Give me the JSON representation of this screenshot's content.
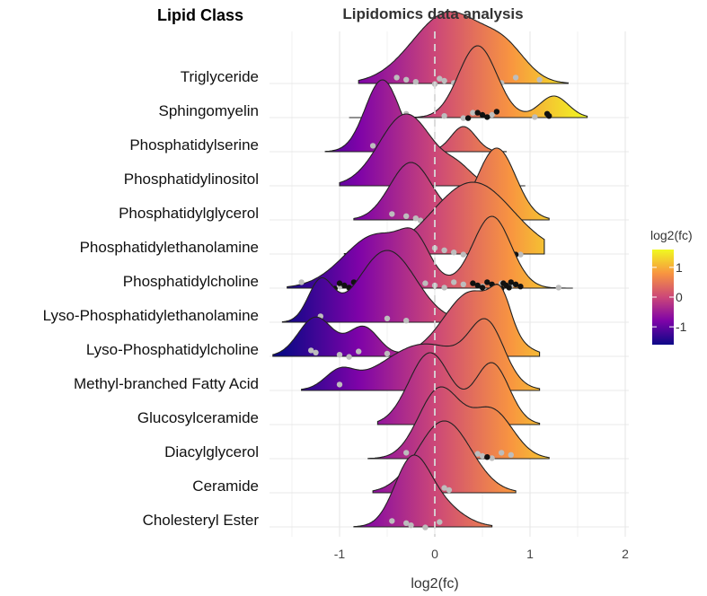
{
  "chart_data": {
    "type": "ridgeline",
    "title": "Lipidomics data analysis",
    "ylabel": "Lipid Class",
    "xlabel": "log2(fc)",
    "xlim": [
      -1.7,
      2.1
    ],
    "x_ticks": [
      -1,
      0,
      1,
      2
    ],
    "grid": true,
    "reference_line": {
      "x": 0,
      "style": "dashed"
    },
    "colorbar": {
      "title": "log2(fc)",
      "range": [
        -1.6,
        1.6
      ],
      "ticks": [
        1,
        0,
        -1
      ],
      "colors": [
        "#0d0887",
        "#7e03a8",
        "#cc4778",
        "#f89540",
        "#f0f921"
      ],
      "placement": "right"
    },
    "categories": [
      "Triglyceride",
      "Sphingomyelin",
      "Phosphatidylserine",
      "Phosphatidylinositol",
      "Phosphatidylglycerol",
      "Phosphatidylethanolamine",
      "Phosphatidylcholine",
      "Lyso-Phosphatidylethanolamine",
      "Lyso-Phosphatidylcholine",
      "Methyl-branched Fatty Acid",
      "Glucosylceramide",
      "Diacylglycerol",
      "Ceramide",
      "Cholesteryl Ester"
    ],
    "series": [
      {
        "name": "Triglyceride",
        "range": [
          -0.8,
          1.4
        ],
        "peaks": [
          {
            "mu": 0.15,
            "sd": 0.38,
            "h": 1.0
          },
          {
            "mu": 0.75,
            "sd": 0.22,
            "h": 0.35
          }
        ],
        "points_grey": [
          -0.4,
          -0.3,
          -0.2,
          0.0,
          0.05,
          0.1,
          0.2,
          0.3,
          0.35,
          0.45,
          0.5,
          0.55,
          0.6,
          0.7,
          0.85,
          1.1
        ],
        "points_black": []
      },
      {
        "name": "Sphingomyelin",
        "range": [
          -0.9,
          1.6
        ],
        "peaks": [
          {
            "mu": 0.45,
            "sd": 0.2,
            "h": 1.0
          },
          {
            "mu": 1.25,
            "sd": 0.15,
            "h": 0.3
          }
        ],
        "points_grey": [
          -0.6,
          -0.3,
          0.1,
          0.3,
          0.4,
          0.6,
          1.05
        ],
        "points_black": [
          -0.55,
          0.35,
          0.45,
          0.5,
          0.55,
          0.65,
          1.18,
          1.2
        ]
      },
      {
        "name": "Phosphatidylserine",
        "range": [
          -1.15,
          0.75
        ],
        "peaks": [
          {
            "mu": -0.55,
            "sd": 0.18,
            "h": 1.0
          },
          {
            "mu": 0.3,
            "sd": 0.13,
            "h": 0.35
          }
        ],
        "points_grey": [
          -0.65
        ],
        "points_black": []
      },
      {
        "name": "Phosphatidylinositol",
        "range": [
          -1.0,
          0.95
        ],
        "peaks": [
          {
            "mu": -0.3,
            "sd": 0.28,
            "h": 1.0
          },
          {
            "mu": 0.25,
            "sd": 0.15,
            "h": 0.2
          }
        ],
        "points_grey": [],
        "points_black": []
      },
      {
        "name": "Phosphatidylglycerol",
        "range": [
          -0.85,
          1.2
        ],
        "peaks": [
          {
            "mu": -0.25,
            "sd": 0.22,
            "h": 0.8
          },
          {
            "mu": 0.65,
            "sd": 0.2,
            "h": 1.0
          }
        ],
        "points_grey": [
          -0.45,
          -0.3,
          -0.2,
          -0.15
        ],
        "points_black": [
          0.55,
          0.75
        ]
      },
      {
        "name": "Phosphatidylethanolamine",
        "range": [
          -0.95,
          1.15
        ],
        "peaks": [
          {
            "mu": 0.4,
            "sd": 0.42,
            "h": 1.0
          }
        ],
        "points_grey": [
          -0.8,
          -0.7,
          -0.5,
          -0.4,
          -0.3,
          -0.2,
          -0.1,
          0.0,
          0.1,
          0.2,
          0.3,
          0.4,
          0.5,
          0.55,
          0.6,
          0.7,
          0.8,
          0.9
        ],
        "points_black": [
          -0.65,
          -0.55,
          0.4,
          0.45,
          0.5,
          0.55,
          0.6,
          0.62,
          0.65,
          0.68,
          0.7,
          0.72,
          0.75,
          0.78,
          0.8,
          0.85
        ]
      },
      {
        "name": "Phosphatidylcholine",
        "range": [
          -1.55,
          1.45
        ],
        "peaks": [
          {
            "mu": -0.6,
            "sd": 0.35,
            "h": 0.75
          },
          {
            "mu": -0.2,
            "sd": 0.15,
            "h": 0.4
          },
          {
            "mu": 0.6,
            "sd": 0.2,
            "h": 1.0
          }
        ],
        "points_grey": [
          -1.4,
          -1.2,
          -1.0,
          -0.9,
          -0.8,
          -0.7,
          -0.6,
          -0.5,
          -0.4,
          -0.3,
          -0.2,
          -0.1,
          0.0,
          0.1,
          0.2,
          0.3,
          0.5,
          0.6,
          0.7,
          0.8,
          1.3
        ],
        "points_black": [
          -1.1,
          -1.05,
          -1.0,
          -0.95,
          -0.9,
          -0.85,
          -0.8,
          -0.6,
          -0.5,
          0.4,
          0.45,
          0.5,
          0.55,
          0.6,
          0.65,
          0.7,
          0.72,
          0.75,
          0.78,
          0.8,
          0.85,
          0.9
        ]
      },
      {
        "name": "Lyso-Phosphatidylethanolamine",
        "range": [
          -1.6,
          0.8
        ],
        "peaks": [
          {
            "mu": -1.2,
            "sd": 0.13,
            "h": 0.55
          },
          {
            "mu": -0.5,
            "sd": 0.3,
            "h": 1.0
          },
          {
            "mu": 0.55,
            "sd": 0.15,
            "h": 0.2
          }
        ],
        "points_grey": [
          -1.2,
          -0.5,
          -0.3
        ],
        "points_black": []
      },
      {
        "name": "Lyso-Phosphatidylcholine",
        "range": [
          -1.7,
          1.1
        ],
        "peaks": [
          {
            "mu": -1.25,
            "sd": 0.18,
            "h": 0.6
          },
          {
            "mu": -0.75,
            "sd": 0.16,
            "h": 0.45
          },
          {
            "mu": 0.4,
            "sd": 0.3,
            "h": 1.0
          },
          {
            "mu": 0.7,
            "sd": 0.1,
            "h": 0.45
          }
        ],
        "points_grey": [
          -1.3,
          -1.25,
          -1.0,
          -0.9,
          -0.8,
          -0.5,
          -0.3,
          -0.1,
          0.0,
          0.1,
          0.2
        ],
        "points_black": []
      },
      {
        "name": "Methyl-branched Fatty Acid",
        "range": [
          -1.4,
          1.1
        ],
        "peaks": [
          {
            "mu": -1.0,
            "sd": 0.15,
            "h": 0.3
          },
          {
            "mu": -0.1,
            "sd": 0.45,
            "h": 0.85
          },
          {
            "mu": 0.55,
            "sd": 0.18,
            "h": 1.0
          }
        ],
        "points_grey": [
          -1.0,
          -0.2
        ],
        "points_black": [
          0.45,
          0.55,
          0.7
        ]
      },
      {
        "name": "Glucosylceramide",
        "range": [
          -0.6,
          1.1
        ],
        "peaks": [
          {
            "mu": -0.05,
            "sd": 0.22,
            "h": 1.0
          },
          {
            "mu": 0.6,
            "sd": 0.18,
            "h": 0.85
          }
        ],
        "points_grey": [
          0.35
        ],
        "points_black": [
          0.6
        ]
      },
      {
        "name": "Diacylglycerol",
        "range": [
          -0.7,
          1.2
        ],
        "peaks": [
          {
            "mu": 0.05,
            "sd": 0.22,
            "h": 0.8
          },
          {
            "mu": 0.6,
            "sd": 0.22,
            "h": 0.55
          }
        ],
        "points_grey": [
          -0.3,
          -0.1,
          0.1,
          0.35,
          0.45,
          0.5,
          0.6,
          0.7,
          0.8
        ],
        "points_black": [
          0.55
        ]
      },
      {
        "name": "Ceramide",
        "range": [
          -0.65,
          0.85
        ],
        "peaks": [
          {
            "mu": 0.1,
            "sd": 0.28,
            "h": 1.0
          }
        ],
        "points_grey": [
          -0.2,
          -0.1,
          -0.05,
          0.05,
          0.1,
          0.15
        ],
        "points_black": []
      },
      {
        "name": "Cholesteryl Ester",
        "range": [
          -0.85,
          0.6
        ],
        "peaks": [
          {
            "mu": -0.25,
            "sd": 0.18,
            "h": 1.0
          },
          {
            "mu": 0.0,
            "sd": 0.25,
            "h": 0.45
          }
        ],
        "points_grey": [
          -0.45,
          -0.3,
          -0.25,
          -0.1,
          0.05
        ],
        "points_black": []
      }
    ]
  }
}
